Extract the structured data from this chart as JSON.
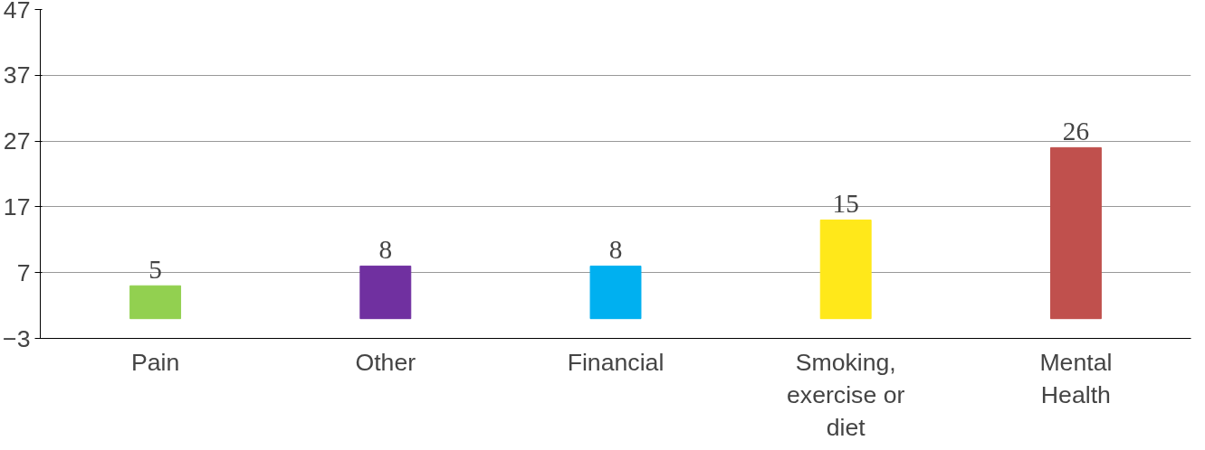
{
  "chart_data": {
    "type": "bar",
    "categories": [
      "Pain",
      "Other",
      "Financial",
      "Smoking, exercise or diet",
      "Mental Health"
    ],
    "values": [
      5,
      8,
      8,
      15,
      26
    ],
    "colors": [
      "#92d050",
      "#7030a0",
      "#00b0f0",
      "#ffe81a",
      "#c0504d"
    ],
    "ylim": [
      -3,
      47
    ],
    "yticks": [
      -3,
      7,
      17,
      27,
      37,
      47
    ],
    "grid": "y",
    "data_labels": true
  }
}
